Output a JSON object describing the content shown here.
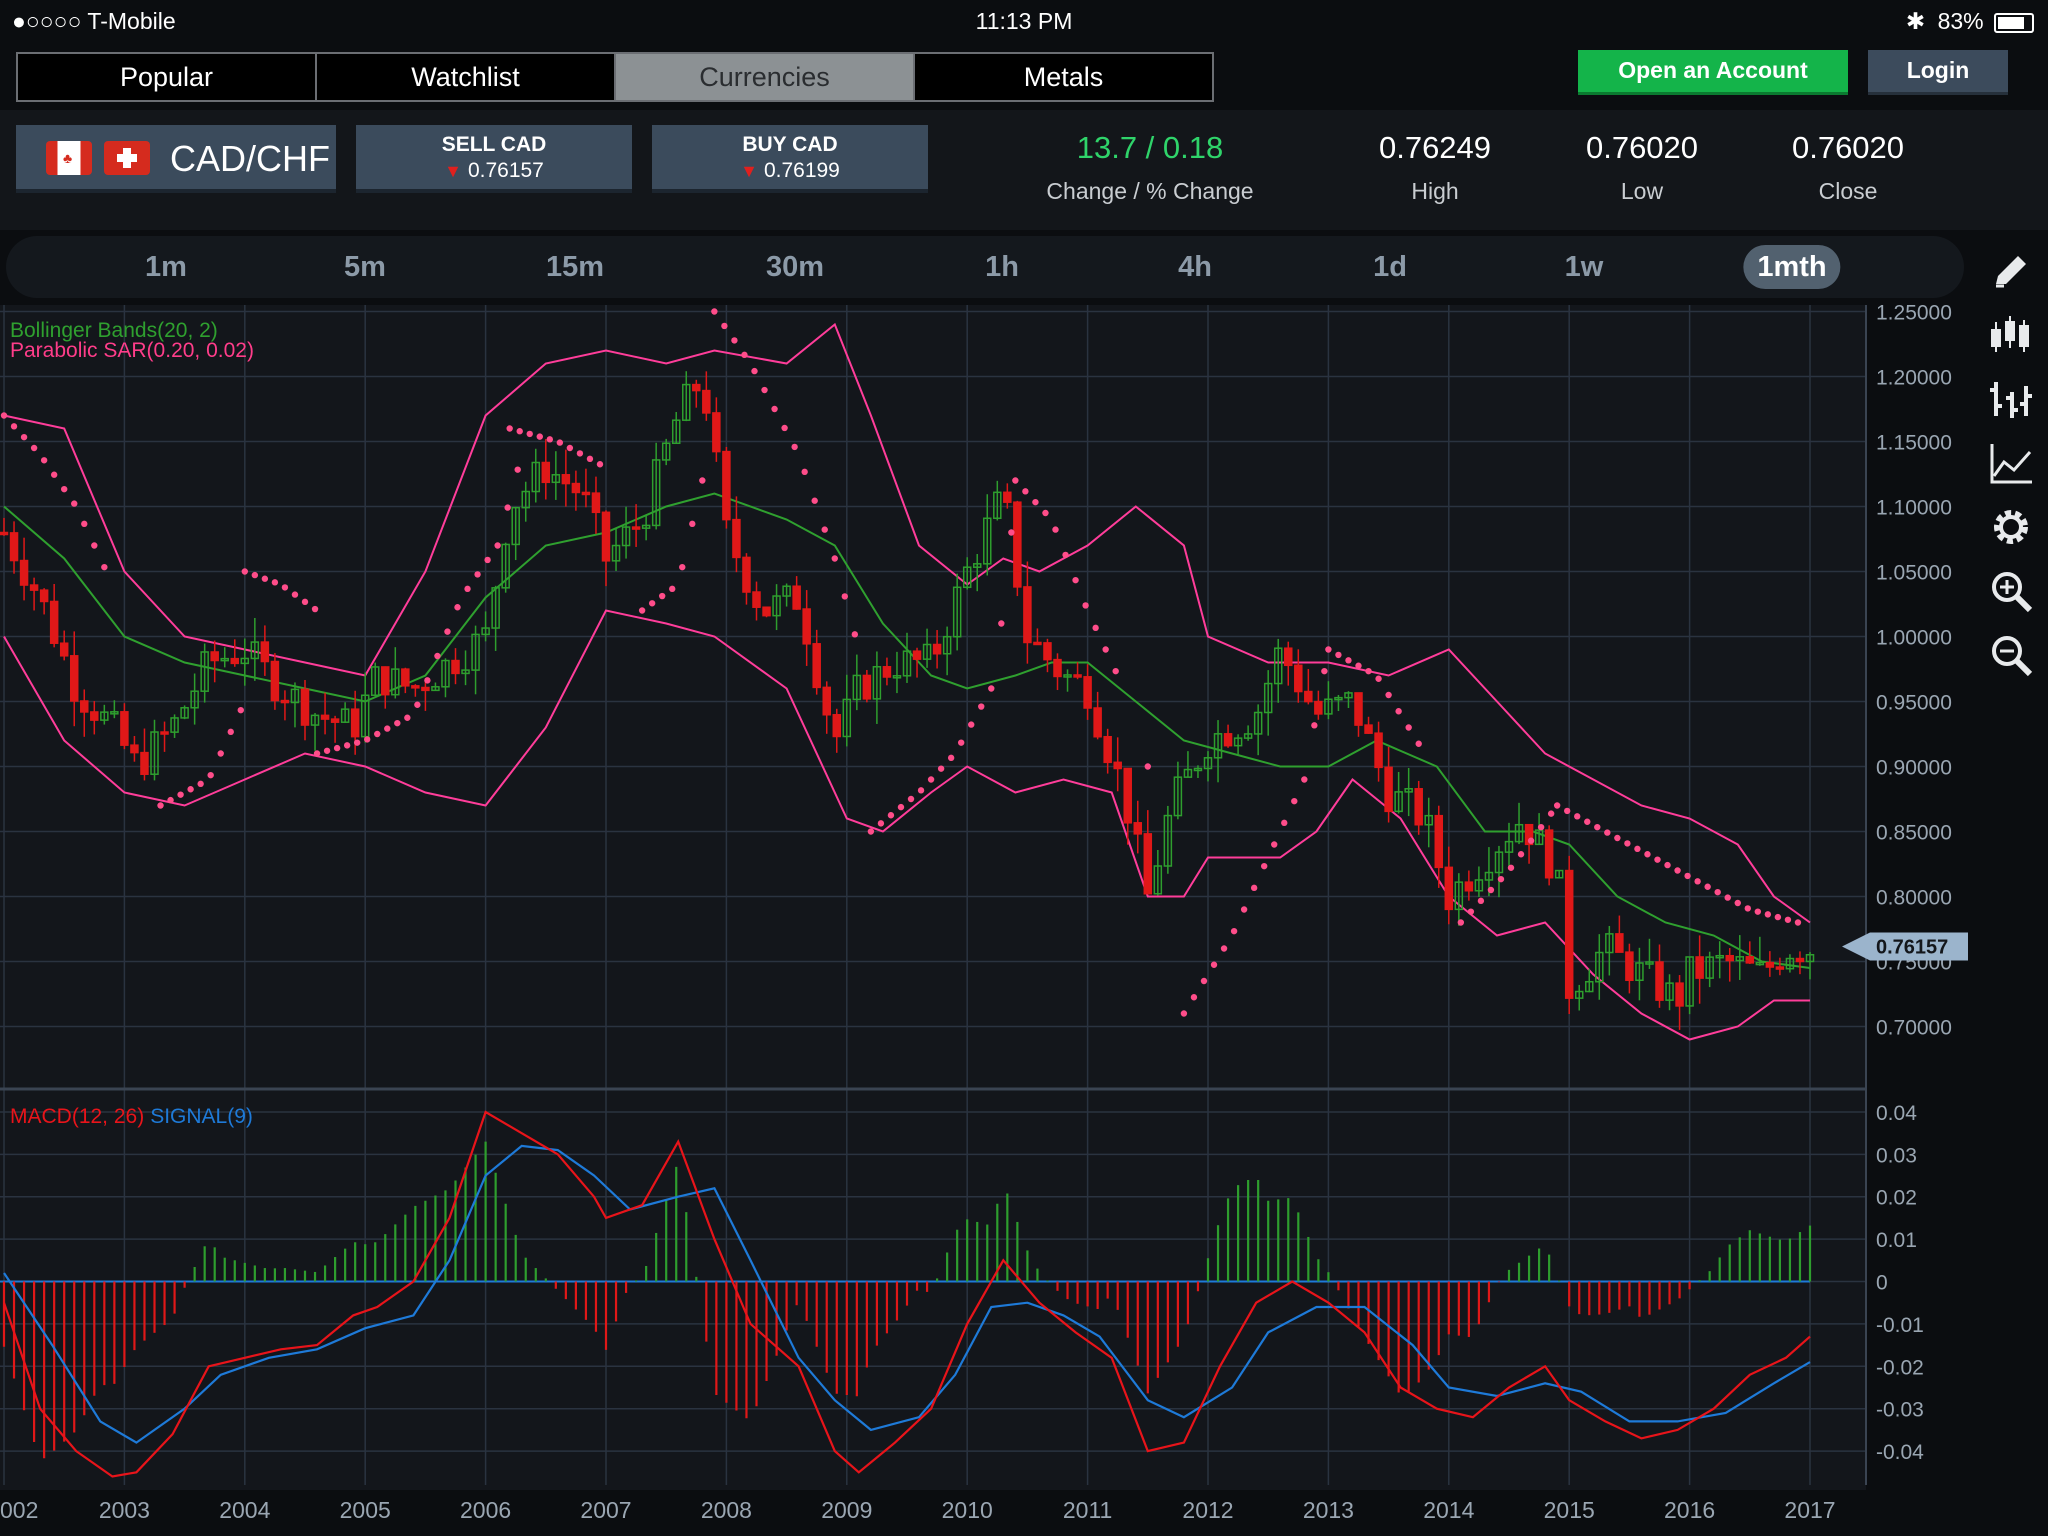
{
  "status": {
    "carrier": "●○○○○ T-Mobile",
    "time": "11:13 PM",
    "battery": "83%"
  },
  "tabs": [
    {
      "label": "Popular",
      "active": false
    },
    {
      "label": "Watchlist",
      "active": false
    },
    {
      "label": "Currencies",
      "active": true
    },
    {
      "label": "Metals",
      "active": false
    }
  ],
  "header": {
    "open_account": "Open an Account",
    "login": "Login"
  },
  "pair": {
    "name": "CAD/CHF"
  },
  "sell": {
    "label": "SELL CAD",
    "price": "0.76157"
  },
  "buy": {
    "label": "BUY CAD",
    "price": "0.76199"
  },
  "stats": {
    "change_value": "13.7 / 0.18",
    "change_label": "Change / % Change",
    "high_value": "0.76249",
    "high_label": "High",
    "low_value": "0.76020",
    "low_label": "Low",
    "close_value": "0.76020",
    "close_label": "Close"
  },
  "timeframes": [
    "1m",
    "5m",
    "15m",
    "30m",
    "1h",
    "4h",
    "1d",
    "1w",
    "1mth"
  ],
  "active_timeframe": "1mth",
  "tools": [
    "pencil-icon",
    "candlestick-icon",
    "ohlc-bars-icon",
    "line-chart-icon",
    "gear-icon",
    "zoom-in-icon",
    "zoom-out-icon"
  ],
  "colors": {
    "bullish": "#2e9e2e",
    "bearish": "#e01818",
    "sar": "#ff4d8a",
    "bollinger_mid": "#2fa02f",
    "bollinger_band": "#ff3d9a",
    "macd": "#e8141a",
    "signal": "#1e7ad8",
    "accent_green": "#14b44a"
  },
  "chart_data": {
    "type": "candlestick",
    "indicators_top": [
      "Bollinger Bands(20, 2)",
      "Parabolic SAR(0.20, 0.02)"
    ],
    "indicator_bottom_macd": "MACD(12, 26)",
    "indicator_bottom_signal": "SIGNAL(9)",
    "price_ticks": [
      "1.25000",
      "1.20000",
      "1.15000",
      "1.10000",
      "1.05000",
      "1.00000",
      "0.95000",
      "0.90000",
      "0.85000",
      "0.80000",
      "0.75000",
      "0.70000"
    ],
    "price_range": [
      0.655,
      1.255
    ],
    "current_price": "0.76157",
    "macd_ticks": [
      "0.04",
      "0.03",
      "0.02",
      "0.01",
      "0",
      "-0.01",
      "-0.02",
      "-0.03",
      "-0.04"
    ],
    "macd_range": [
      -0.048,
      0.044
    ],
    "x_labels": [
      "002",
      "2003",
      "2004",
      "2005",
      "2006",
      "2007",
      "2008",
      "2009",
      "2010",
      "2011",
      "2012",
      "2013",
      "2014",
      "2015",
      "2016",
      "2017"
    ],
    "x_start_year": 2002.0,
    "x_end_year": 2017.0,
    "close": [
      [
        2002.0,
        1.08
      ],
      [
        2002.3,
        1.03
      ],
      [
        2002.6,
        0.96
      ],
      [
        2002.9,
        0.93
      ],
      [
        2003.1,
        0.9
      ],
      [
        2003.4,
        0.93
      ],
      [
        2003.7,
        0.98
      ],
      [
        2004.0,
        0.99
      ],
      [
        2004.3,
        0.96
      ],
      [
        2004.6,
        0.94
      ],
      [
        2004.9,
        0.93
      ],
      [
        2005.1,
        0.97
      ],
      [
        2005.4,
        0.96
      ],
      [
        2005.7,
        0.98
      ],
      [
        2006.0,
        1.0
      ],
      [
        2006.2,
        1.1
      ],
      [
        2006.5,
        1.13
      ],
      [
        2006.8,
        1.11
      ],
      [
        2007.0,
        1.06
      ],
      [
        2007.3,
        1.09
      ],
      [
        2007.6,
        1.17
      ],
      [
        2007.8,
        1.2
      ],
      [
        2008.0,
        1.08
      ],
      [
        2008.3,
        1.02
      ],
      [
        2008.6,
        1.03
      ],
      [
        2008.9,
        0.92
      ],
      [
        2009.1,
        0.96
      ],
      [
        2009.4,
        0.98
      ],
      [
        2009.7,
        0.98
      ],
      [
        2010.0,
        1.05
      ],
      [
        2010.3,
        1.11
      ],
      [
        2010.5,
        1.0
      ],
      [
        2010.8,
        0.97
      ],
      [
        2011.0,
        0.96
      ],
      [
        2011.3,
        0.88
      ],
      [
        2011.5,
        0.8
      ],
      [
        2011.7,
        0.87
      ],
      [
        2012.0,
        0.92
      ],
      [
        2012.4,
        0.94
      ],
      [
        2012.6,
        0.99
      ],
      [
        2012.9,
        0.94
      ],
      [
        2013.2,
        0.95
      ],
      [
        2013.5,
        0.88
      ],
      [
        2013.8,
        0.86
      ],
      [
        2014.0,
        0.8
      ],
      [
        2014.3,
        0.83
      ],
      [
        2014.6,
        0.86
      ],
      [
        2014.9,
        0.82
      ],
      [
        2015.0,
        0.73
      ],
      [
        2015.3,
        0.76
      ],
      [
        2015.6,
        0.74
      ],
      [
        2015.9,
        0.72
      ],
      [
        2016.0,
        0.74
      ],
      [
        2016.3,
        0.75
      ],
      [
        2016.6,
        0.74
      ],
      [
        2016.8,
        0.76
      ],
      [
        2017.0,
        0.76
      ]
    ],
    "bb_upper": [
      [
        2002.0,
        1.17
      ],
      [
        2002.5,
        1.16
      ],
      [
        2003.0,
        1.05
      ],
      [
        2003.5,
        1.0
      ],
      [
        2004.0,
        0.99
      ],
      [
        2004.5,
        0.98
      ],
      [
        2005.0,
        0.97
      ],
      [
        2005.5,
        1.05
      ],
      [
        2006.0,
        1.17
      ],
      [
        2006.5,
        1.21
      ],
      [
        2007.0,
        1.22
      ],
      [
        2007.5,
        1.21
      ],
      [
        2007.9,
        1.22
      ],
      [
        2008.5,
        1.21
      ],
      [
        2008.9,
        1.24
      ],
      [
        2009.2,
        1.17
      ],
      [
        2009.6,
        1.07
      ],
      [
        2010.0,
        1.04
      ],
      [
        2010.3,
        1.06
      ],
      [
        2010.6,
        1.05
      ],
      [
        2011.0,
        1.07
      ],
      [
        2011.4,
        1.1
      ],
      [
        2011.8,
        1.07
      ],
      [
        2012.0,
        1.0
      ],
      [
        2012.5,
        0.98
      ],
      [
        2013.0,
        0.98
      ],
      [
        2013.5,
        0.97
      ],
      [
        2014.0,
        0.99
      ],
      [
        2014.4,
        0.95
      ],
      [
        2014.8,
        0.91
      ],
      [
        2015.2,
        0.89
      ],
      [
        2015.6,
        0.87
      ],
      [
        2016.0,
        0.86
      ],
      [
        2016.4,
        0.84
      ],
      [
        2016.7,
        0.8
      ],
      [
        2017.0,
        0.78
      ]
    ],
    "bb_mid": [
      [
        2002.0,
        1.1
      ],
      [
        2002.5,
        1.06
      ],
      [
        2003.0,
        1.0
      ],
      [
        2003.5,
        0.98
      ],
      [
        2004.0,
        0.97
      ],
      [
        2004.5,
        0.96
      ],
      [
        2005.0,
        0.95
      ],
      [
        2005.5,
        0.97
      ],
      [
        2006.0,
        1.03
      ],
      [
        2006.5,
        1.07
      ],
      [
        2007.0,
        1.08
      ],
      [
        2007.5,
        1.1
      ],
      [
        2007.9,
        1.11
      ],
      [
        2008.5,
        1.09
      ],
      [
        2008.9,
        1.07
      ],
      [
        2009.3,
        1.01
      ],
      [
        2009.7,
        0.97
      ],
      [
        2010.0,
        0.96
      ],
      [
        2010.4,
        0.97
      ],
      [
        2010.7,
        0.98
      ],
      [
        2011.0,
        0.98
      ],
      [
        2011.4,
        0.95
      ],
      [
        2011.8,
        0.92
      ],
      [
        2012.2,
        0.91
      ],
      [
        2012.6,
        0.9
      ],
      [
        2013.0,
        0.9
      ],
      [
        2013.4,
        0.92
      ],
      [
        2013.9,
        0.9
      ],
      [
        2014.3,
        0.85
      ],
      [
        2014.7,
        0.85
      ],
      [
        2015.0,
        0.84
      ],
      [
        2015.4,
        0.8
      ],
      [
        2015.8,
        0.78
      ],
      [
        2016.2,
        0.77
      ],
      [
        2016.6,
        0.75
      ],
      [
        2017.0,
        0.745
      ]
    ],
    "bb_lower": [
      [
        2002.0,
        1.0
      ],
      [
        2002.5,
        0.92
      ],
      [
        2003.0,
        0.88
      ],
      [
        2003.5,
        0.87
      ],
      [
        2004.0,
        0.89
      ],
      [
        2004.5,
        0.91
      ],
      [
        2005.0,
        0.9
      ],
      [
        2005.5,
        0.88
      ],
      [
        2006.0,
        0.87
      ],
      [
        2006.5,
        0.93
      ],
      [
        2007.0,
        1.02
      ],
      [
        2007.5,
        1.01
      ],
      [
        2007.9,
        1.0
      ],
      [
        2008.5,
        0.96
      ],
      [
        2009.0,
        0.86
      ],
      [
        2009.3,
        0.85
      ],
      [
        2009.7,
        0.88
      ],
      [
        2010.0,
        0.9
      ],
      [
        2010.4,
        0.88
      ],
      [
        2010.8,
        0.89
      ],
      [
        2011.2,
        0.88
      ],
      [
        2011.5,
        0.8
      ],
      [
        2011.8,
        0.8
      ],
      [
        2012.0,
        0.83
      ],
      [
        2012.6,
        0.83
      ],
      [
        2012.9,
        0.85
      ],
      [
        2013.2,
        0.89
      ],
      [
        2013.6,
        0.86
      ],
      [
        2014.0,
        0.8
      ],
      [
        2014.4,
        0.77
      ],
      [
        2014.8,
        0.78
      ],
      [
        2015.2,
        0.74
      ],
      [
        2015.6,
        0.71
      ],
      [
        2016.0,
        0.69
      ],
      [
        2016.4,
        0.7
      ],
      [
        2016.7,
        0.72
      ],
      [
        2017.0,
        0.72
      ]
    ],
    "sar_segments": [
      [
        [
          2002.0,
          1.17
        ],
        [
          2002.3,
          1.14
        ],
        [
          2002.6,
          1.1
        ],
        [
          2002.9,
          1.04
        ]
      ],
      [
        [
          2003.3,
          0.87
        ],
        [
          2003.7,
          0.89
        ],
        [
          2004.0,
          0.95
        ]
      ],
      [
        [
          2004.0,
          1.05
        ],
        [
          2004.3,
          1.04
        ],
        [
          2004.6,
          1.02
        ]
      ],
      [
        [
          2004.6,
          0.91
        ],
        [
          2005.0,
          0.92
        ],
        [
          2005.4,
          0.94
        ],
        [
          2005.8,
          1.03
        ],
        [
          2006.1,
          1.07
        ],
        [
          2006.3,
          1.14
        ]
      ],
      [
        [
          2006.2,
          1.16
        ],
        [
          2006.6,
          1.15
        ],
        [
          2007.0,
          1.13
        ]
      ],
      [
        [
          2007.3,
          1.02
        ],
        [
          2007.6,
          1.04
        ],
        [
          2007.8,
          1.12
        ]
      ],
      [
        [
          2007.9,
          1.25
        ],
        [
          2008.2,
          1.21
        ],
        [
          2008.6,
          1.14
        ],
        [
          2008.9,
          1.06
        ],
        [
          2009.1,
          0.99
        ]
      ],
      [
        [
          2009.2,
          0.85
        ],
        [
          2009.6,
          0.88
        ],
        [
          2009.9,
          0.91
        ],
        [
          2010.2,
          0.96
        ],
        [
          2010.3,
          1.02
        ],
        [
          2010.4,
          1.11
        ]
      ],
      [
        [
          2010.4,
          1.12
        ],
        [
          2010.7,
          1.09
        ],
        [
          2011.0,
          1.02
        ],
        [
          2011.3,
          0.96
        ]
      ],
      [
        [
          2011.5,
          0.9
        ]
      ],
      [
        [
          2011.8,
          0.71
        ],
        [
          2012.2,
          0.77
        ],
        [
          2012.5,
          0.83
        ],
        [
          2012.8,
          0.89
        ],
        [
          2013.0,
          0.99
        ]
      ],
      [
        [
          2013.0,
          0.99
        ],
        [
          2013.4,
          0.97
        ],
        [
          2013.8,
          0.91
        ]
      ],
      [
        [
          2014.1,
          0.78
        ],
        [
          2014.5,
          0.82
        ],
        [
          2014.9,
          0.87
        ]
      ],
      [
        [
          2014.9,
          0.87
        ],
        [
          2015.3,
          0.85
        ],
        [
          2015.7,
          0.83
        ],
        [
          2016.1,
          0.81
        ],
        [
          2016.5,
          0.79
        ],
        [
          2016.9,
          0.78
        ]
      ]
    ],
    "macd_line": [
      [
        2002.0,
        -0.005
      ],
      [
        2002.3,
        -0.03
      ],
      [
        2002.6,
        -0.04
      ],
      [
        2002.9,
        -0.046
      ],
      [
        2003.1,
        -0.045
      ],
      [
        2003.4,
        -0.036
      ],
      [
        2003.7,
        -0.02
      ],
      [
        2004.0,
        -0.018
      ],
      [
        2004.3,
        -0.016
      ],
      [
        2004.6,
        -0.015
      ],
      [
        2004.9,
        -0.008
      ],
      [
        2005.1,
        -0.006
      ],
      [
        2005.4,
        0.0
      ],
      [
        2005.7,
        0.015
      ],
      [
        2006.0,
        0.04
      ],
      [
        2006.3,
        0.035
      ],
      [
        2006.6,
        0.03
      ],
      [
        2006.9,
        0.02
      ],
      [
        2007.0,
        0.015
      ],
      [
        2007.3,
        0.018
      ],
      [
        2007.6,
        0.033
      ],
      [
        2007.9,
        0.01
      ],
      [
        2008.2,
        -0.01
      ],
      [
        2008.6,
        -0.02
      ],
      [
        2008.9,
        -0.04
      ],
      [
        2009.1,
        -0.045
      ],
      [
        2009.4,
        -0.038
      ],
      [
        2009.7,
        -0.03
      ],
      [
        2010.0,
        -0.01
      ],
      [
        2010.3,
        0.005
      ],
      [
        2010.6,
        -0.005
      ],
      [
        2010.9,
        -0.012
      ],
      [
        2011.2,
        -0.018
      ],
      [
        2011.5,
        -0.04
      ],
      [
        2011.8,
        -0.038
      ],
      [
        2012.1,
        -0.02
      ],
      [
        2012.4,
        -0.005
      ],
      [
        2012.7,
        0.0
      ],
      [
        2013.0,
        -0.005
      ],
      [
        2013.3,
        -0.012
      ],
      [
        2013.6,
        -0.025
      ],
      [
        2013.9,
        -0.03
      ],
      [
        2014.2,
        -0.032
      ],
      [
        2014.5,
        -0.025
      ],
      [
        2014.8,
        -0.02
      ],
      [
        2015.0,
        -0.028
      ],
      [
        2015.3,
        -0.033
      ],
      [
        2015.6,
        -0.037
      ],
      [
        2015.9,
        -0.035
      ],
      [
        2016.2,
        -0.03
      ],
      [
        2016.5,
        -0.022
      ],
      [
        2016.8,
        -0.018
      ],
      [
        2017.0,
        -0.013
      ]
    ],
    "signal_line": [
      [
        2002.0,
        0.002
      ],
      [
        2002.4,
        -0.015
      ],
      [
        2002.8,
        -0.033
      ],
      [
        2003.1,
        -0.038
      ],
      [
        2003.5,
        -0.03
      ],
      [
        2003.8,
        -0.022
      ],
      [
        2004.2,
        -0.018
      ],
      [
        2004.6,
        -0.016
      ],
      [
        2005.0,
        -0.011
      ],
      [
        2005.4,
        -0.008
      ],
      [
        2005.7,
        0.005
      ],
      [
        2006.0,
        0.025
      ],
      [
        2006.3,
        0.032
      ],
      [
        2006.6,
        0.031
      ],
      [
        2006.9,
        0.025
      ],
      [
        2007.2,
        0.017
      ],
      [
        2007.6,
        0.02
      ],
      [
        2007.9,
        0.022
      ],
      [
        2008.2,
        0.005
      ],
      [
        2008.6,
        -0.018
      ],
      [
        2008.9,
        -0.028
      ],
      [
        2009.2,
        -0.035
      ],
      [
        2009.6,
        -0.032
      ],
      [
        2009.9,
        -0.022
      ],
      [
        2010.2,
        -0.006
      ],
      [
        2010.5,
        -0.005
      ],
      [
        2010.8,
        -0.008
      ],
      [
        2011.1,
        -0.013
      ],
      [
        2011.5,
        -0.028
      ],
      [
        2011.8,
        -0.032
      ],
      [
        2012.2,
        -0.025
      ],
      [
        2012.5,
        -0.012
      ],
      [
        2012.9,
        -0.006
      ],
      [
        2013.3,
        -0.006
      ],
      [
        2013.7,
        -0.015
      ],
      [
        2014.0,
        -0.025
      ],
      [
        2014.4,
        -0.027
      ],
      [
        2014.8,
        -0.024
      ],
      [
        2015.1,
        -0.026
      ],
      [
        2015.5,
        -0.033
      ],
      [
        2015.9,
        -0.033
      ],
      [
        2016.3,
        -0.031
      ],
      [
        2016.7,
        -0.024
      ],
      [
        2017.0,
        -0.019
      ]
    ]
  }
}
